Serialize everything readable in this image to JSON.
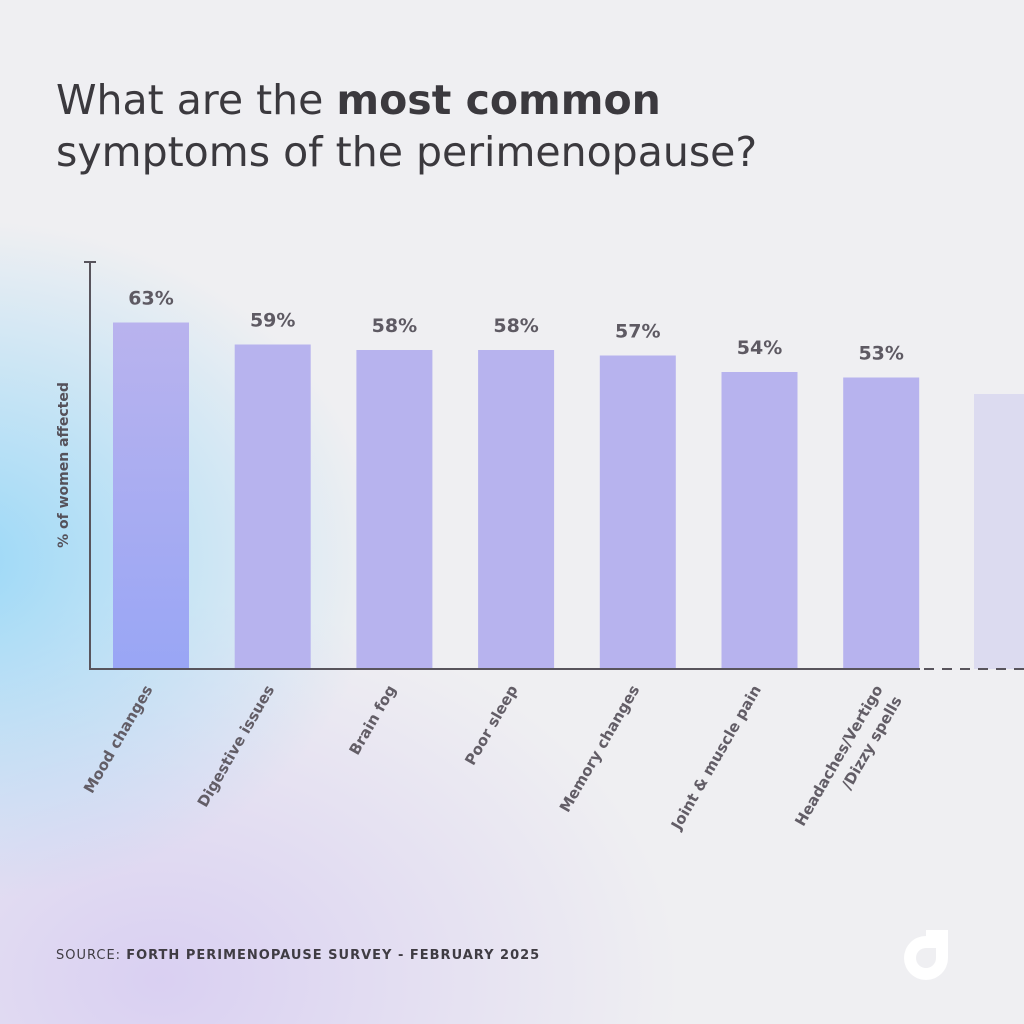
{
  "title": {
    "prefix": "What are the ",
    "bold": "most common",
    "line2": "symptoms of the perimenopause?"
  },
  "source": {
    "label": "SOURCE:",
    "text": "FORTH PERIMENOPAUSE SURVEY - FEBRUARY 2025"
  },
  "colors": {
    "bar": "#b7b3ee",
    "bar_first_bottom": "#9aa6f4",
    "faded_bar": "#dcdbf0",
    "axis": "#58545c"
  },
  "logo": {
    "icon": "forth-logo-icon"
  },
  "chart_data": {
    "type": "bar",
    "title": "What are the most common symptoms of the perimenopause?",
    "xlabel": "",
    "ylabel": "% of women affected",
    "categories": [
      "Mood changes",
      "Digestive issues",
      "Brain fog",
      "Poor sleep",
      "Memory changes",
      "Joint & muscle pain",
      "Headaches/Vertigo\n/Dizzy spells"
    ],
    "values": [
      63,
      59,
      58,
      58,
      57,
      54,
      53
    ],
    "value_labels": [
      "63%",
      "59%",
      "58%",
      "58%",
      "57%",
      "54%",
      "53%"
    ],
    "ylim": [
      0,
      70
    ],
    "grid": false,
    "truncated_next_bar_value": 50
  }
}
